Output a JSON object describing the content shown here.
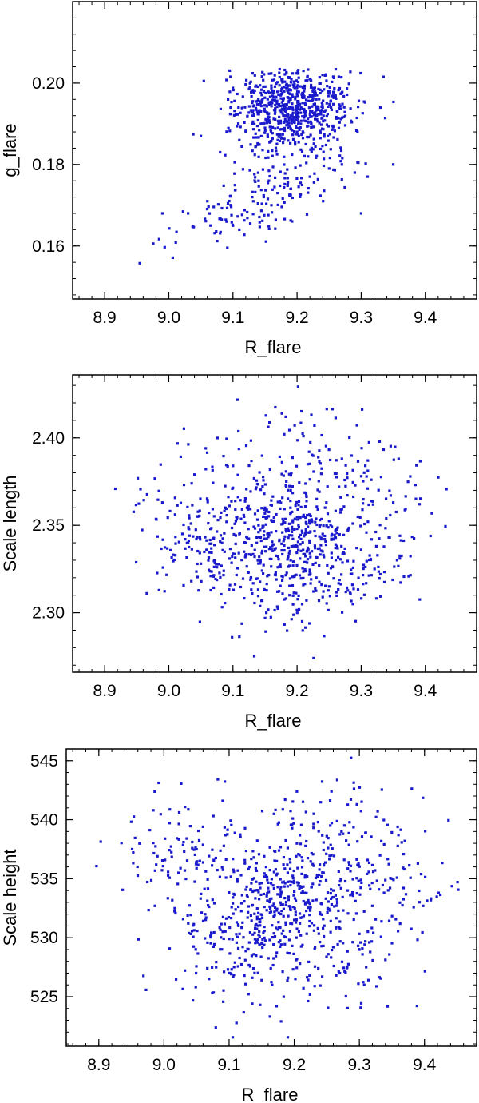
{
  "colors": {
    "points": "#1a1acc",
    "frame": "#000000",
    "background": "#ffffff"
  },
  "chart_data": [
    {
      "type": "scatter",
      "xlabel": "R_flare",
      "ylabel": "g_flare",
      "xlim": [
        8.85,
        9.48
      ],
      "ylim": [
        0.147,
        0.22
      ],
      "xticks": [
        8.9,
        9.0,
        9.1,
        9.2,
        9.3,
        9.4
      ],
      "xtick_labels": [
        "8.9",
        "9.0",
        "9.1",
        "9.2",
        "9.3",
        "9.4"
      ],
      "yticks": [
        0.16,
        0.18,
        0.2
      ],
      "ytick_labels": [
        "0.16",
        "0.18",
        "0.20"
      ],
      "points_count": 900,
      "x": [
        9.18,
        9.21,
        9.16,
        9.2,
        9.23,
        9.15,
        9.12,
        9.25,
        9.19,
        9.22,
        9.17,
        9.14,
        9.24,
        9.2,
        9.18,
        9.13,
        9.26,
        9.21,
        9.11,
        9.19,
        8.99,
        9.03,
        9.06,
        9.09,
        9.11,
        9.13,
        9.16,
        9.19,
        9.22,
        9.25,
        9.29,
        9.31,
        9.33,
        9.35,
        9.05,
        9.08,
        9.1,
        9.27,
        9.3,
        9.14
      ],
      "y": [
        0.199,
        0.197,
        0.195,
        0.199,
        0.196,
        0.189,
        0.188,
        0.198,
        0.192,
        0.201,
        0.186,
        0.185,
        0.194,
        0.188,
        0.198,
        0.19,
        0.197,
        0.203,
        0.186,
        0.196,
        0.168,
        0.168,
        0.171,
        0.166,
        0.164,
        0.172,
        0.17,
        0.174,
        0.177,
        0.179,
        0.178,
        0.177,
        0.194,
        0.18,
        0.187,
        0.183,
        0.165,
        0.18,
        0.168,
        0.176
      ]
    },
    {
      "type": "scatter",
      "xlabel": "R_flare",
      "ylabel": "Scale length",
      "xlim": [
        8.85,
        9.48
      ],
      "ylim": [
        2.266,
        2.436
      ],
      "xticks": [
        8.9,
        9.0,
        9.1,
        9.2,
        9.3,
        9.4
      ],
      "xtick_labels": [
        "8.9",
        "9.0",
        "9.1",
        "9.2",
        "9.3",
        "9.4"
      ],
      "yticks": [
        2.3,
        2.35,
        2.4
      ],
      "ytick_labels": [
        "2.30",
        "2.35",
        "2.40"
      ],
      "points_count": 900,
      "x": [
        9.18,
        9.2,
        9.16,
        9.22,
        9.14,
        9.19,
        9.24,
        9.12,
        9.21,
        9.17,
        9.26,
        9.15,
        9.23,
        9.11,
        9.2,
        8.99,
        9.03,
        9.05,
        9.35,
        9.33,
        9.31,
        9.09,
        9.3,
        9.21,
        9.17,
        9.27,
        9.1,
        9.13,
        9.25,
        9.19
      ],
      "y": [
        2.342,
        2.338,
        2.346,
        2.334,
        2.35,
        2.33,
        2.345,
        2.34,
        2.355,
        2.326,
        2.337,
        2.36,
        2.32,
        2.345,
        2.348,
        2.363,
        2.34,
        2.328,
        2.363,
        2.322,
        2.371,
        2.352,
        2.336,
        2.401,
        2.303,
        2.388,
        2.384,
        2.311,
        2.315,
        2.37
      ]
    },
    {
      "type": "scatter",
      "xlabel": "R_flare",
      "ylabel": "Scale height",
      "xlim": [
        8.85,
        9.48
      ],
      "ylim": [
        520.8,
        546.0
      ],
      "xticks": [
        8.9,
        9.0,
        9.1,
        9.2,
        9.3,
        9.4
      ],
      "xtick_labels": [
        "8.9",
        "9.0",
        "9.1",
        "9.2",
        "9.3",
        "9.4"
      ],
      "yticks": [
        525,
        530,
        535,
        540,
        545
      ],
      "ytick_labels": [
        "525",
        "530",
        "535",
        "540",
        "545"
      ],
      "points_count": 900,
      "x": [
        9.18,
        9.2,
        9.16,
        9.22,
        9.14,
        9.19,
        9.24,
        9.12,
        9.21,
        9.17,
        9.26,
        9.15,
        9.23,
        9.11,
        9.2,
        8.99,
        9.03,
        9.05,
        9.06,
        9.35,
        9.33,
        9.31,
        9.23,
        9.15,
        9.27,
        9.3,
        9.08,
        9.1,
        9.25,
        9.19
      ],
      "y": [
        532.8,
        531.5,
        534.2,
        533.0,
        530.8,
        535.5,
        532.0,
        533.6,
        530.2,
        531.9,
        534.0,
        529.5,
        536.1,
        532.4,
        533.9,
        536.9,
        538.1,
        537.5,
        539.4,
        535.0,
        534.1,
        538.9,
        540.5,
        526.4,
        527.0,
        529.0,
        527.5,
        529.9,
        538.6,
        537.6
      ]
    }
  ]
}
